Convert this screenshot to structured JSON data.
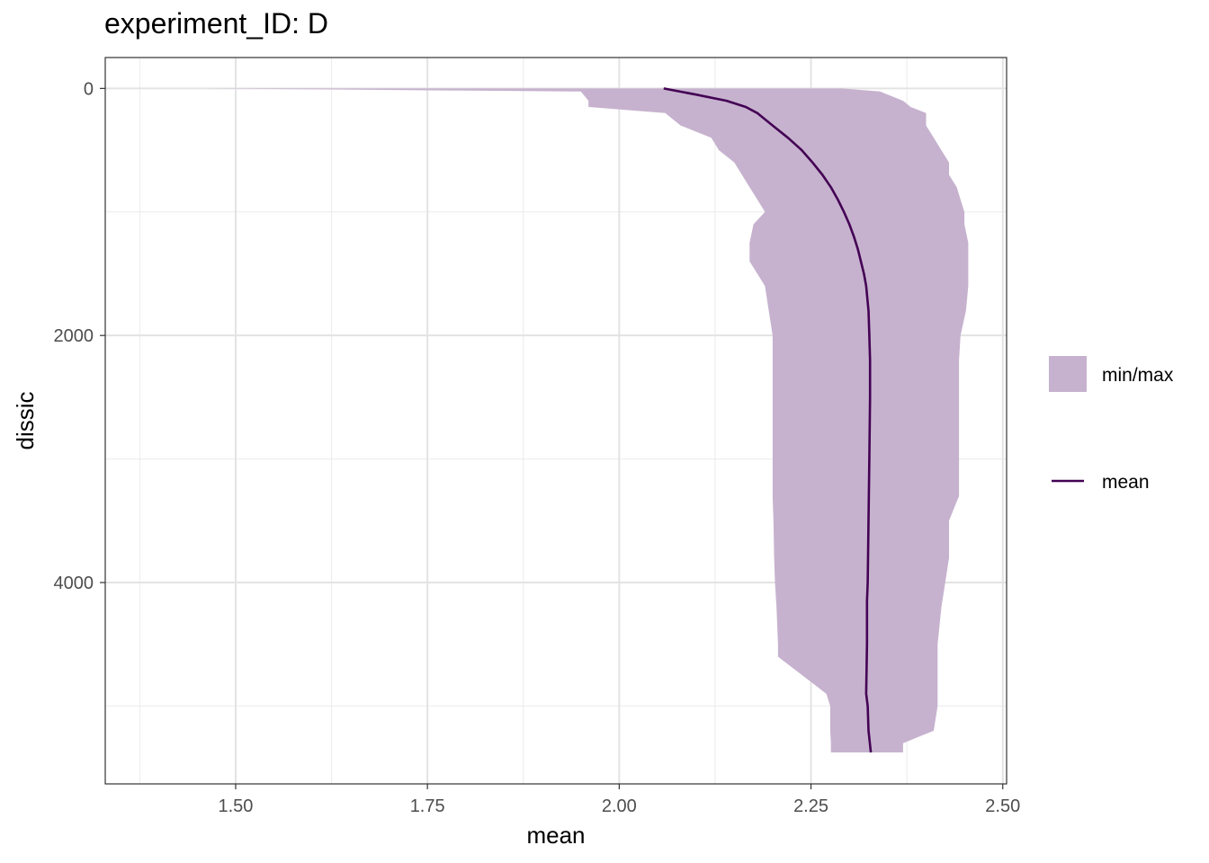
{
  "chart_data": {
    "type": "area",
    "title": "experiment_ID: D",
    "xlabel": "mean",
    "ylabel": "dissic",
    "xlim": [
      1.33,
      2.505
    ],
    "ylim": [
      -250,
      5630
    ],
    "y_reversed": true,
    "grid": true,
    "legend_position": "right",
    "x_ticks": [
      1.5,
      1.75,
      2.0,
      2.25,
      2.5
    ],
    "x_tick_labels": [
      "1.50",
      "1.75",
      "2.00",
      "2.25",
      "2.50"
    ],
    "y_ticks": [
      0,
      2000,
      4000
    ],
    "y_tick_labels": [
      "0",
      "2000",
      "4000"
    ],
    "series": [
      {
        "name": "min/max",
        "kind": "ribbon",
        "color": "#c6b2ce",
        "depth": [
          0,
          25,
          100,
          150,
          200,
          300,
          400,
          500,
          600,
          700,
          800,
          900,
          1000,
          1100,
          1250,
          1400,
          1500,
          1600,
          1800,
          2000,
          2200,
          2500,
          3000,
          3300,
          3500,
          3800,
          4000,
          4200,
          4500,
          4600,
          4900,
          5000,
          5200,
          5300,
          5375
        ],
        "min": [
          1.46,
          1.95,
          1.96,
          1.96,
          2.06,
          2.08,
          2.12,
          2.13,
          2.15,
          2.16,
          2.17,
          2.18,
          2.19,
          2.175,
          2.17,
          2.17,
          2.18,
          2.19,
          2.195,
          2.2,
          2.2,
          2.2,
          2.2,
          2.2,
          2.201,
          2.202,
          2.203,
          2.205,
          2.207,
          2.207,
          2.27,
          2.275,
          2.275,
          2.276,
          2.276
        ],
        "max": [
          2.29,
          2.34,
          2.37,
          2.38,
          2.4,
          2.4,
          2.41,
          2.42,
          2.43,
          2.43,
          2.44,
          2.445,
          2.45,
          2.45,
          2.455,
          2.455,
          2.455,
          2.455,
          2.452,
          2.445,
          2.443,
          2.443,
          2.443,
          2.443,
          2.43,
          2.43,
          2.425,
          2.42,
          2.415,
          2.415,
          2.415,
          2.415,
          2.41,
          2.37,
          2.37
        ]
      },
      {
        "name": "mean",
        "kind": "line",
        "color": "#440154",
        "depth": [
          0,
          50,
          100,
          150,
          200,
          300,
          400,
          500,
          600,
          700,
          800,
          900,
          1000,
          1100,
          1200,
          1300,
          1400,
          1500,
          1600,
          1800,
          2000,
          2200,
          2500,
          3000,
          3500,
          4000,
          4150,
          4500,
          4900,
          5000,
          5200,
          5375
        ],
        "mean": [
          2.058,
          2.1,
          2.14,
          2.165,
          2.18,
          2.2,
          2.22,
          2.238,
          2.252,
          2.265,
          2.276,
          2.285,
          2.293,
          2.3,
          2.306,
          2.311,
          2.315,
          2.319,
          2.322,
          2.325,
          2.326,
          2.327,
          2.327,
          2.326,
          2.325,
          2.324,
          2.323,
          2.323,
          2.322,
          2.324,
          2.325,
          2.328
        ]
      }
    ]
  }
}
